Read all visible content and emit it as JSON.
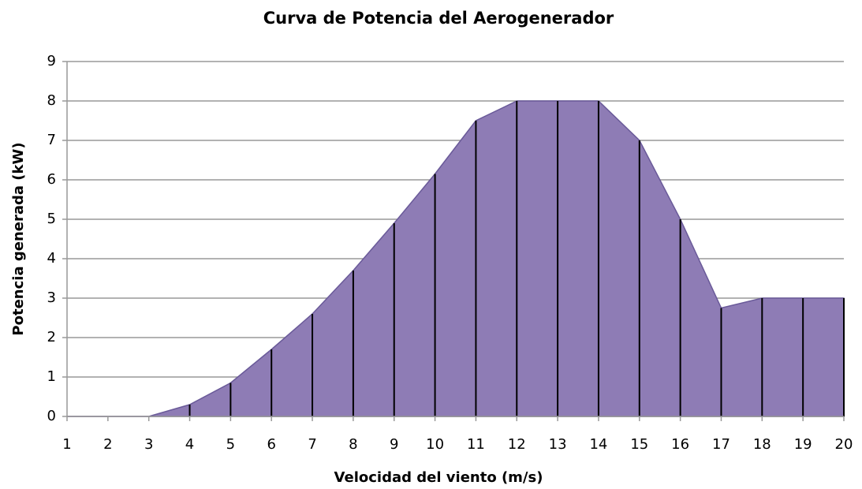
{
  "chart_data": {
    "type": "area",
    "title": "Curva de Potencia del Aerogenerador",
    "xlabel": "Velocidad del viento (m/s)",
    "ylabel": "Potencia generada (kW)",
    "categories": [
      "1",
      "2",
      "3",
      "4",
      "5",
      "6",
      "7",
      "8",
      "9",
      "10",
      "11",
      "12",
      "13",
      "14",
      "15",
      "16",
      "17",
      "18",
      "19",
      "20"
    ],
    "values": [
      0,
      0,
      0,
      0.3,
      0.85,
      1.7,
      2.6,
      3.7,
      4.9,
      6.15,
      7.5,
      8,
      8,
      8,
      7,
      5,
      2.75,
      3,
      3,
      3
    ],
    "color": "#8e7cb5",
    "ylim": [
      0,
      9
    ],
    "yticks": [
      0,
      1,
      2,
      3,
      4,
      5,
      6,
      7,
      8,
      9
    ],
    "grid": true
  }
}
